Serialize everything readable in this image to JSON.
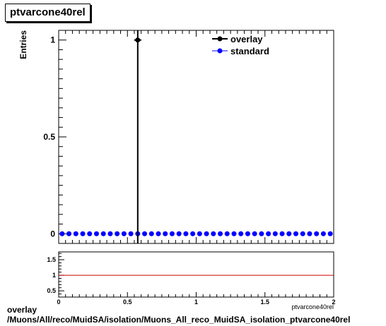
{
  "title": "ptvarcone40rel",
  "footer": {
    "line1": "overlay",
    "line2": "/Muons/All/reco/MuidSA/isolation/Muons_All_reco_MuidSA_isolation_ptvarcone40rel"
  },
  "chart_data": [
    {
      "type": "scatter",
      "title": "ptvarcone40rel",
      "xlabel": "ptvarcone40rel",
      "ylabel": "Entries",
      "xlim": [
        0,
        2
      ],
      "ylim": [
        -0.05,
        1.05
      ],
      "yticks": [
        "0",
        "0.5",
        "1"
      ],
      "legend_position": "top-right",
      "series": [
        {
          "name": "overlay",
          "color": "#000000",
          "points": [
            {
              "x": 0.575,
              "y": 1
            }
          ],
          "error_bars": true
        },
        {
          "name": "standard",
          "color": "#0000ff",
          "x": [
            0.025,
            0.075,
            0.125,
            0.175,
            0.225,
            0.275,
            0.325,
            0.375,
            0.425,
            0.475,
            0.525,
            0.575,
            0.625,
            0.675,
            0.725,
            0.775,
            0.825,
            0.875,
            0.925,
            0.975,
            1.025,
            1.075,
            1.125,
            1.175,
            1.225,
            1.275,
            1.325,
            1.375,
            1.425,
            1.475,
            1.525,
            1.575,
            1.625,
            1.675,
            1.725,
            1.775,
            1.825,
            1.875,
            1.925,
            1.975
          ],
          "y": [
            0,
            0,
            0,
            0,
            0,
            0,
            0,
            0,
            0,
            0,
            0,
            0,
            0,
            0,
            0,
            0,
            0,
            0,
            0,
            0,
            0,
            0,
            0,
            0,
            0,
            0,
            0,
            0,
            0,
            0,
            0,
            0,
            0,
            0,
            0,
            0,
            0,
            0,
            0,
            0
          ]
        }
      ]
    },
    {
      "type": "line",
      "xlim": [
        0,
        2
      ],
      "ylim": [
        0.3,
        1.75
      ],
      "xticks": [
        "0",
        "0.5",
        "1",
        "1.5",
        "2"
      ],
      "yticks": [
        "0.5",
        "1",
        "1.5"
      ],
      "reference_line": {
        "y": 1,
        "color": "#cc0000"
      }
    }
  ]
}
